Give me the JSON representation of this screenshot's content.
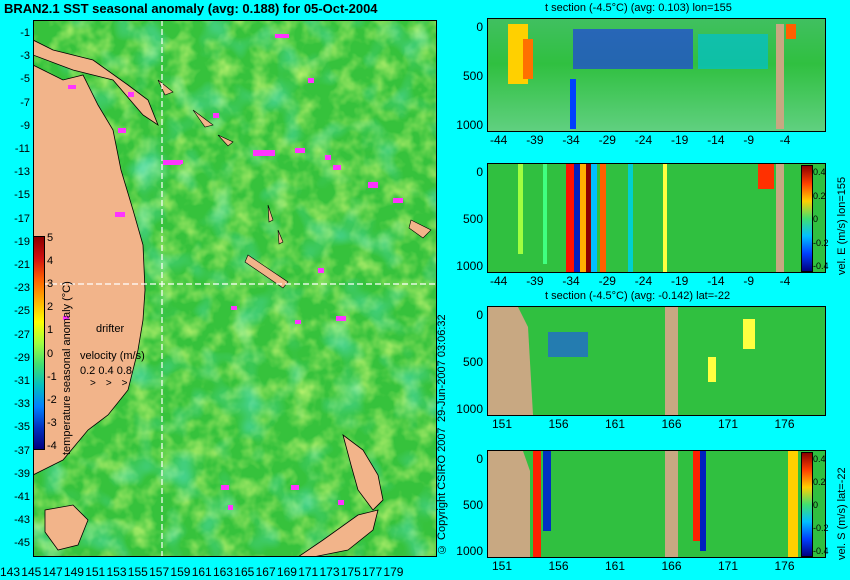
{
  "title": "BRAN2.1 SST seasonal anomaly (avg: 0.188) for 05-Oct-2004",
  "map": {
    "lat_ticks": [
      "-1",
      "-3",
      "-5",
      "-7",
      "-9",
      "-11",
      "-13",
      "-15",
      "-17",
      "-19",
      "-21",
      "-23",
      "-25",
      "-27",
      "-29",
      "-31",
      "-33",
      "-35",
      "-37",
      "-39",
      "-41",
      "-43",
      "-45"
    ],
    "lon_ticks": [
      "143",
      "145",
      "147",
      "149",
      "151",
      "153",
      "155",
      "157",
      "159",
      "161",
      "163",
      "165",
      "167",
      "169",
      "171",
      "173",
      "175",
      "177",
      "179"
    ],
    "colorbar_label": "temperature seasonal anomaly (°C)",
    "colorbar_ticks": [
      "5",
      "4",
      "3",
      "2",
      "1",
      "0",
      "-1",
      "-2",
      "-3",
      "-4"
    ],
    "legend_drifter": "drifter",
    "legend_velocity_title": "velocity (m/s)",
    "legend_velocity_values": "0.2 0.4 0.8",
    "crosshair": {
      "lon": 155,
      "lat": -22
    },
    "colors": {
      "land": "#f2b48a",
      "ocean": "#33c440",
      "drifter": "#ff33ff",
      "section_line": "#ffffff"
    }
  },
  "panels": [
    {
      "title": "t section (-4.5°C) (avg: 0.103) lon=155",
      "x_ticks": [
        "-44",
        "-39",
        "-34",
        "-29",
        "-24",
        "-19",
        "-14",
        "-9",
        "-4"
      ],
      "y_ticks": [
        "0",
        "500",
        "1000"
      ]
    },
    {
      "title": "",
      "x_ticks": [
        "-44",
        "-39",
        "-34",
        "-29",
        "-24",
        "-19",
        "-14",
        "-9",
        "-4"
      ],
      "y_ticks": [
        "0",
        "500",
        "1000"
      ],
      "colorbar_label": "vel. E (m/s) lon=155",
      "colorbar_ticks": [
        "0.4",
        "0.2",
        "0",
        "-0.2",
        "-0.4"
      ]
    },
    {
      "title": "t section (-4.5°C) (avg: -0.142) lat=-22",
      "x_ticks": [
        "151",
        "156",
        "161",
        "166",
        "171",
        "176"
      ],
      "y_ticks": [
        "0",
        "500",
        "1000"
      ]
    },
    {
      "title": "",
      "x_ticks": [
        "151",
        "156",
        "161",
        "166",
        "171",
        "176"
      ],
      "y_ticks": [
        "0",
        "500",
        "1000"
      ],
      "colorbar_label": "vel. S (m/s) lat=-22",
      "colorbar_ticks": [
        "0.4",
        "0.2",
        "0",
        "-0.2",
        "-0.4"
      ]
    }
  ],
  "timestamp": "29-Jun-2007 03:06:32",
  "copyright": "© Copyright CSIRO 2007"
}
